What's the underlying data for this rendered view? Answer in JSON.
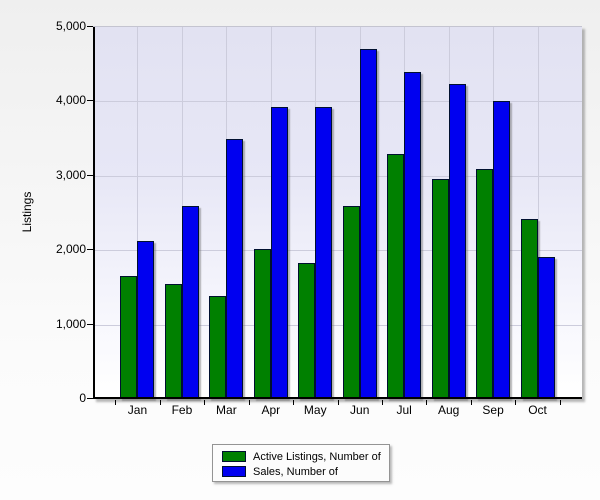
{
  "chart_data": {
    "type": "bar",
    "title": "",
    "xlabel": "",
    "ylabel": "Listings",
    "ylim": [
      0,
      5000
    ],
    "y_tick_interval": 1000,
    "y_tick_labels": [
      "0",
      "1,000",
      "2,000",
      "3,000",
      "4,000",
      "5,000"
    ],
    "categories": [
      "Jan",
      "Feb",
      "Mar",
      "Apr",
      "May",
      "Jun",
      "Jul",
      "Aug",
      "Sep",
      "Oct"
    ],
    "series": [
      {
        "name": "Active Listings, Number of",
        "color": "#008000",
        "values": [
          1650,
          1540,
          1390,
          2020,
          1830,
          2590,
          3290,
          2960,
          3090,
          2420
        ]
      },
      {
        "name": "Sales, Number of",
        "color": "#0000f0",
        "values": [
          2120,
          2590,
          3500,
          3920,
          3930,
          4700,
          4400,
          4240,
          4000,
          1910
        ]
      }
    ],
    "grid": "horizontal and vertical gridlines, light lavender plot background",
    "legend_position": "bottom"
  }
}
